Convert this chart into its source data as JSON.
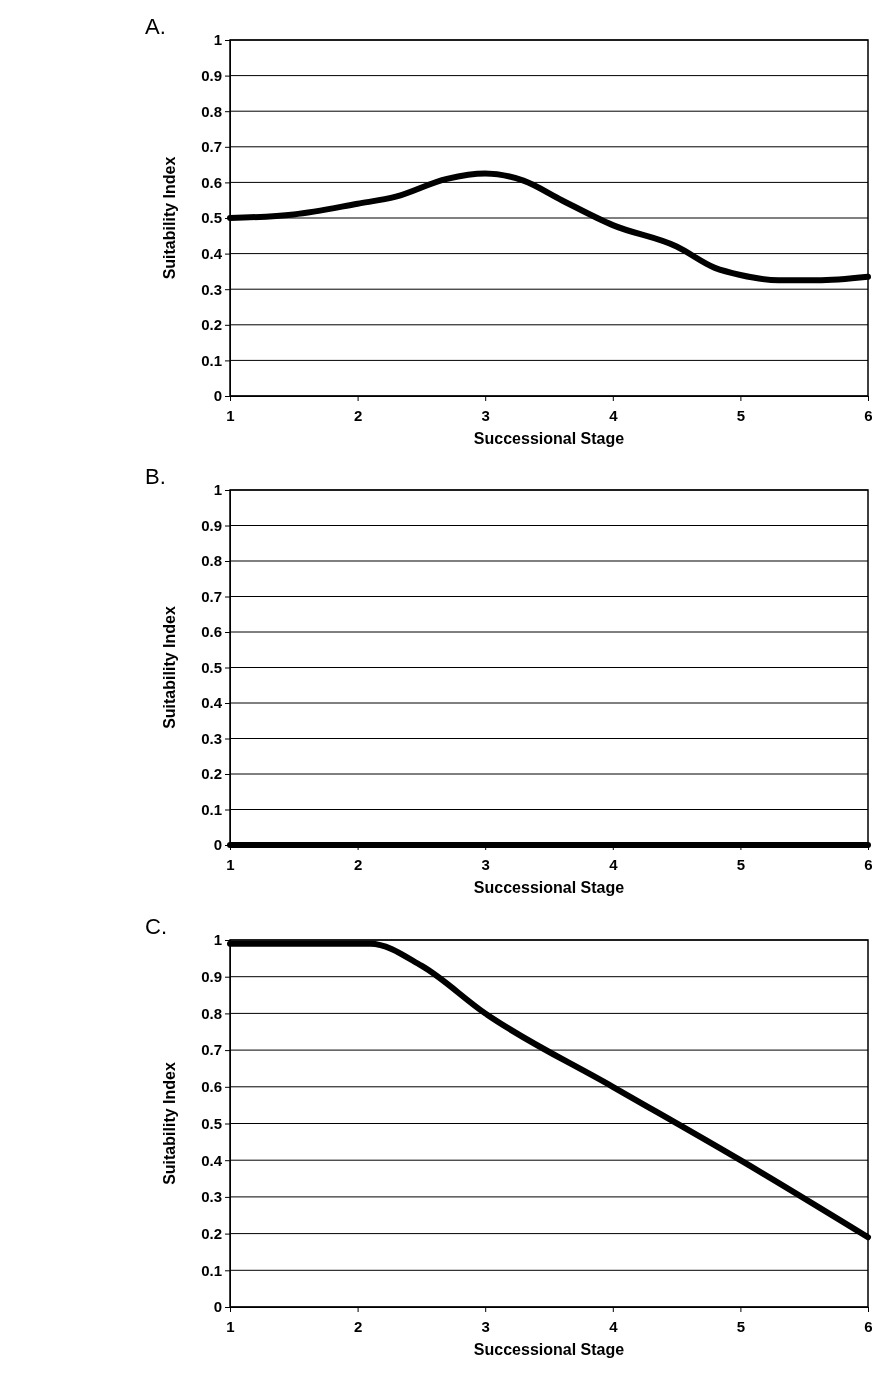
{
  "chart_data": [
    {
      "type": "line",
      "title": "A.",
      "xlabel": "Successional Stage",
      "ylabel": "Suitability Index",
      "xlim": [
        1,
        6
      ],
      "xticks": [
        1,
        2,
        3,
        4,
        5,
        6
      ],
      "ylim": [
        0,
        1
      ],
      "yticks": [
        0,
        0.1,
        0.2,
        0.3,
        0.4,
        0.5,
        0.6,
        0.7,
        0.8,
        0.9,
        1
      ],
      "grid": "y",
      "line_style": "solid",
      "series": [
        {
          "color": "#000000",
          "x": [
            1,
            1.5,
            2,
            2.3,
            2.7,
            3,
            3.3,
            3.6,
            4,
            4.5,
            4.8,
            5,
            5.3,
            5.6,
            6
          ],
          "values": [
            0.5,
            0.51,
            0.54,
            0.56,
            0.61,
            0.625,
            0.605,
            0.55,
            0.48,
            0.42,
            0.36,
            0.34,
            0.325,
            0.325,
            0.335
          ]
        }
      ]
    },
    {
      "type": "line",
      "title": "B.",
      "xlabel": "Successional Stage",
      "ylabel": "Suitability Index",
      "xlim": [
        1,
        6
      ],
      "xticks": [
        1,
        2,
        3,
        4,
        5,
        6
      ],
      "ylim": [
        0,
        1
      ],
      "yticks": [
        0,
        0.1,
        0.2,
        0.3,
        0.4,
        0.5,
        0.6,
        0.7,
        0.8,
        0.9,
        1
      ],
      "grid": "y",
      "line_style": "solid",
      "series": [
        {
          "color": "#000000",
          "x": [
            1,
            2,
            3,
            4,
            5,
            6
          ],
          "values": [
            0,
            0,
            0,
            0,
            0,
            0
          ]
        }
      ]
    },
    {
      "type": "line",
      "title": "C.",
      "xlabel": "Successional Stage",
      "ylabel": "Suitability Index",
      "xlim": [
        1,
        6
      ],
      "xticks": [
        1,
        2,
        3,
        4,
        5,
        6
      ],
      "ylim": [
        0,
        1
      ],
      "yticks": [
        0,
        0.1,
        0.2,
        0.3,
        0.4,
        0.5,
        0.6,
        0.7,
        0.8,
        0.9,
        1
      ],
      "grid": "y",
      "line_style": "solid",
      "series": [
        {
          "color": "#000000",
          "x": [
            1,
            2.1,
            2.5,
            3,
            4,
            5,
            6
          ],
          "values": [
            0.99,
            0.99,
            0.93,
            0.8,
            0.6,
            0.4,
            0.19
          ]
        }
      ]
    }
  ]
}
